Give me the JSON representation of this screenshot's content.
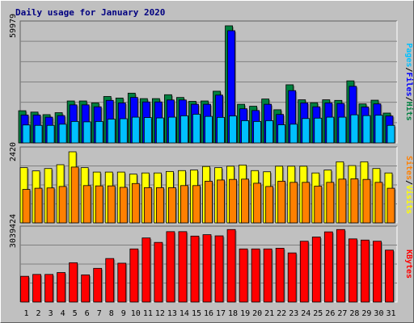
{
  "title": "Daily usage for January 2020",
  "colors": {
    "hits": "#008040",
    "files": "#0000ff",
    "pages": "#00c0ff",
    "visits": "#ffff00",
    "sites": "#ff8000",
    "kbytes": "#ff0000",
    "weekend_label": "#008040",
    "weekday_label": "#000000"
  },
  "chart_data": [
    {
      "type": "bar",
      "panel": "top",
      "x": [
        "1",
        "2",
        "3",
        "4",
        "5",
        "6",
        "7",
        "8",
        "9",
        "10",
        "11",
        "12",
        "13",
        "14",
        "15",
        "16",
        "17",
        "18",
        "19",
        "20",
        "21",
        "22",
        "23",
        "24",
        "25",
        "26",
        "27",
        "28",
        "29",
        "30",
        "31"
      ],
      "weekend_days": [
        "4",
        "5",
        "11",
        "12",
        "18",
        "19",
        "25",
        "26"
      ],
      "ylim": [
        0,
        59979
      ],
      "tick_label": "59979",
      "legend": [
        "Pages",
        "/",
        "Files",
        "/",
        "Hits"
      ],
      "series": [
        {
          "name": "Hits",
          "values": [
            16500,
            15800,
            14500,
            15500,
            21500,
            21500,
            20500,
            23800,
            23000,
            25500,
            22700,
            22700,
            24700,
            23300,
            21300,
            21500,
            26500,
            60000,
            19800,
            18800,
            22500,
            17000,
            29800,
            22100,
            20600,
            22100,
            21800,
            31800,
            20000,
            21900,
            15300
          ]
        },
        {
          "name": "Files",
          "values": [
            14300,
            14300,
            13200,
            14000,
            19500,
            19500,
            18500,
            21800,
            20500,
            23300,
            21000,
            21000,
            22000,
            22000,
            19800,
            19800,
            24500,
            57500,
            17500,
            16600,
            19800,
            14600,
            26800,
            20500,
            18500,
            20500,
            20200,
            29000,
            18400,
            20000,
            13800
          ]
        },
        {
          "name": "Pages",
          "values": [
            9200,
            9000,
            9000,
            9600,
            11000,
            10800,
            11000,
            12200,
            12400,
            13200,
            13000,
            12800,
            13200,
            13900,
            14700,
            13600,
            13100,
            13800,
            11400,
            11000,
            11400,
            9300,
            9600,
            12500,
            12700,
            13200,
            13200,
            14400,
            14000,
            14200,
            9000
          ]
        }
      ]
    },
    {
      "type": "bar",
      "panel": "middle",
      "x": [
        "1",
        "2",
        "3",
        "4",
        "5",
        "6",
        "7",
        "8",
        "9",
        "10",
        "11",
        "12",
        "13",
        "14",
        "15",
        "16",
        "17",
        "18",
        "19",
        "20",
        "21",
        "22",
        "23",
        "24",
        "25",
        "26",
        "27",
        "28",
        "29",
        "30",
        "31"
      ],
      "ylim": [
        0,
        2420
      ],
      "tick_label": "2420",
      "legend": [
        "Sites",
        "/",
        "Visits"
      ],
      "series": [
        {
          "name": "Visits",
          "values": [
            1880,
            1770,
            1850,
            1980,
            2420,
            1880,
            1730,
            1730,
            1730,
            1660,
            1700,
            1700,
            1750,
            1780,
            1800,
            1920,
            1880,
            1930,
            1970,
            1780,
            1740,
            1930,
            1930,
            1930,
            1700,
            1800,
            2080,
            1950,
            2080,
            1850,
            1700
          ]
        },
        {
          "name": "Sites",
          "values": [
            1140,
            1180,
            1190,
            1240,
            1900,
            1270,
            1260,
            1260,
            1210,
            1340,
            1200,
            1200,
            1200,
            1270,
            1270,
            1420,
            1460,
            1480,
            1490,
            1350,
            1240,
            1420,
            1380,
            1380,
            1250,
            1380,
            1490,
            1500,
            1480,
            1380,
            1180
          ]
        }
      ]
    },
    {
      "type": "bar",
      "panel": "bottom",
      "x": [
        "1",
        "2",
        "3",
        "4",
        "5",
        "6",
        "7",
        "8",
        "9",
        "10",
        "11",
        "12",
        "13",
        "14",
        "15",
        "16",
        "17",
        "18",
        "19",
        "20",
        "21",
        "22",
        "23",
        "24",
        "25",
        "26",
        "27",
        "28",
        "29",
        "30",
        "31"
      ],
      "ylim": [
        0,
        3039424
      ],
      "tick_label": "3039424",
      "legend": [
        "KBytes"
      ],
      "series": [
        {
          "name": "KBytes",
          "values": [
            1100000,
            1180000,
            1180000,
            1260000,
            1680000,
            1160000,
            1440000,
            1860000,
            1660000,
            2270000,
            2740000,
            2550000,
            3010000,
            3010000,
            2820000,
            2880000,
            2830000,
            3100000,
            2270000,
            2270000,
            2270000,
            2300000,
            2100000,
            2600000,
            2780000,
            3000000,
            3100000,
            2700000,
            2650000,
            2600000,
            2220000
          ]
        }
      ]
    }
  ]
}
